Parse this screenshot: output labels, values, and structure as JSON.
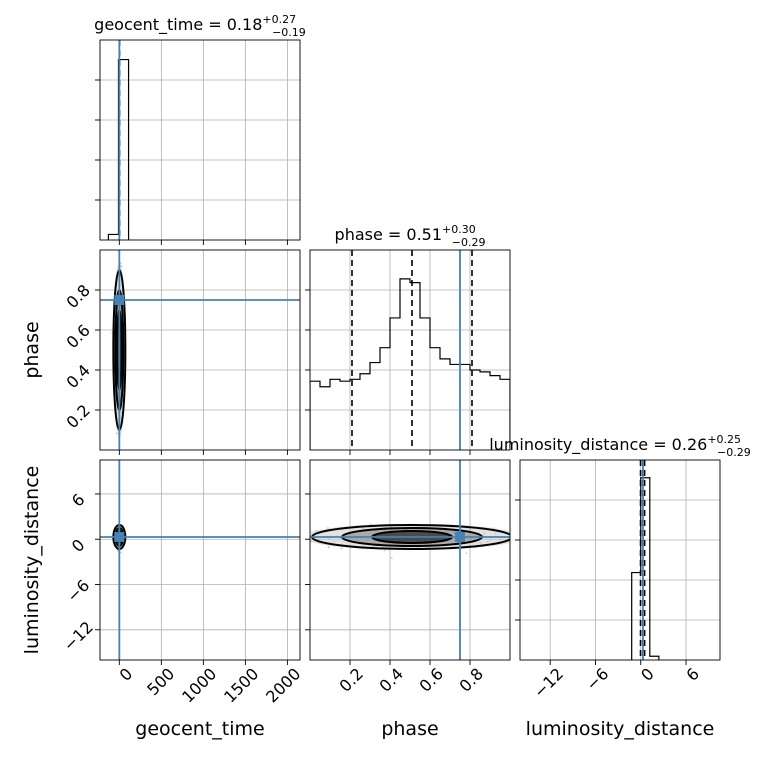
{
  "chart_data": {
    "type": "corner",
    "parameters": [
      "geocent_time",
      "phase",
      "luminosity_distance"
    ],
    "truths": {
      "geocent_time": 0.0,
      "phase": 0.75,
      "luminosity_distance": 0.3
    },
    "colors": {
      "truth": "#4682b4",
      "hist": "#000000",
      "grid": "#b0b0b0",
      "points": "#999999"
    },
    "grid": true,
    "diagonal": [
      {
        "param": "geocent_time",
        "title_prefix": "geocent_time = ",
        "median": "0.18",
        "plus": "+0.27",
        "minus": "−0.19",
        "xlim": [
          -230,
          2150
        ],
        "quantiles": [
          -0.01,
          0.18,
          0.45
        ],
        "hist_edges": [
          -130,
          -10,
          110
        ],
        "hist_counts": [
          0.03,
          0.97
        ],
        "ymax": 1.0,
        "xticks": [
          0,
          500,
          1000,
          1500,
          2000
        ]
      },
      {
        "param": "phase",
        "title_prefix": "phase = ",
        "median": "0.51",
        "plus": "+0.30",
        "minus": "−0.29",
        "xlim": [
          0.0,
          1.0
        ],
        "quantiles": [
          0.21,
          0.51,
          0.81
        ],
        "hist_edges": [
          0.0,
          0.05,
          0.1,
          0.15,
          0.2,
          0.25,
          0.3,
          0.35,
          0.4,
          0.45,
          0.5,
          0.55,
          0.6,
          0.65,
          0.7,
          0.75,
          0.8,
          0.85,
          0.9,
          0.95,
          1.0
        ],
        "hist_counts": [
          0.37,
          0.34,
          0.38,
          0.37,
          0.38,
          0.41,
          0.47,
          0.55,
          0.71,
          0.92,
          0.9,
          0.71,
          0.55,
          0.49,
          0.46,
          0.46,
          0.43,
          0.42,
          0.4,
          0.38
        ],
        "ymax": 1.0,
        "xticks": [
          0.2,
          0.4,
          0.6,
          0.8
        ]
      },
      {
        "param": "luminosity_distance",
        "title_prefix": "luminosity_distance = ",
        "median": "0.26",
        "plus": "+0.25",
        "minus": "−0.29",
        "xlim": [
          -16,
          10.5
        ],
        "quantiles": [
          -0.03,
          0.26,
          0.51
        ],
        "hist_edges": [
          -1.2,
          0.0,
          1.2,
          2.4
        ],
        "hist_counts": [
          0.47,
          0.98,
          0.02
        ],
        "ymax": 1.0,
        "xticks": [
          -12,
          -6,
          0,
          6
        ]
      }
    ],
    "ylims": {
      "phase": [
        0.0,
        1.0
      ],
      "luminosity_distance": [
        -16,
        10.5
      ]
    },
    "yticks": {
      "phase": [
        0.2,
        0.4,
        0.6,
        0.8
      ],
      "luminosity_distance": [
        -12,
        -6,
        0,
        6
      ]
    },
    "tick_labels": {
      "geocent_time": [
        "0",
        "500",
        "1000",
        "1500",
        "2000"
      ],
      "phase": [
        "0.2",
        "0.4",
        "0.6",
        "0.8"
      ],
      "luminosity_distance": [
        "−12",
        "−6",
        "0",
        "6"
      ]
    },
    "axis_labels": {
      "geocent_time": "geocent_time",
      "phase": "phase",
      "luminosity_distance": "luminosity_distance"
    }
  }
}
